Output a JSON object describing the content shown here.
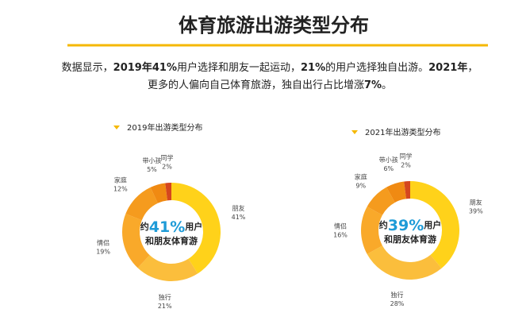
{
  "header": {
    "title": "体育旅游出游类型分布"
  },
  "summary": [
    {
      "text": "数据显示，",
      "bold": false
    },
    {
      "text": "2019年41%",
      "bold": true
    },
    {
      "text": "用户选择和朋友一起运动，",
      "bold": false
    },
    {
      "text": "21%",
      "bold": true
    },
    {
      "text": "的用户选择独自出游。",
      "bold": false
    },
    {
      "text": "2021年",
      "bold": true
    },
    {
      "text": "，",
      "bold": false
    },
    {
      "text": "更多的人偏向自己体育旅游，独自出行占比增涨",
      "bold": false,
      "newline": true
    },
    {
      "text": "7%",
      "bold": true
    },
    {
      "text": "。",
      "bold": false
    }
  ],
  "chart_data": [
    {
      "type": "donut",
      "title": "2019年出游类型分布",
      "categories": [
        "朋友",
        "独行",
        "情侣",
        "家庭",
        "带小孩",
        "同学"
      ],
      "values": [
        41,
        21,
        19,
        12,
        5,
        2
      ],
      "value_labels": [
        "41%",
        "21%",
        "19%",
        "12%",
        "5%",
        "2%"
      ],
      "colors": [
        "#FFD21A",
        "#FBBE3C",
        "#F9A92A",
        "#F59B1E",
        "#F08A12",
        "#D5461E"
      ],
      "center_text": {
        "prefix": "约",
        "highlight": "41%",
        "suffix": "用户",
        "line2": "和朋友体育游"
      }
    },
    {
      "type": "donut",
      "title": "2021年出游类型分布",
      "categories": [
        "朋友",
        "独行",
        "情侣",
        "家庭",
        "带小孩",
        "同学"
      ],
      "values": [
        39,
        28,
        16,
        9,
        6,
        2
      ],
      "value_labels": [
        "39%",
        "28%",
        "16%",
        "9%",
        "6%",
        "2%"
      ],
      "colors": [
        "#FFD21A",
        "#FBBE3C",
        "#F9A92A",
        "#F59B1E",
        "#F08A12",
        "#D5461E"
      ],
      "center_text": {
        "prefix": "约",
        "highlight": "39%",
        "suffix": "用户",
        "line2": "和朋友体育游"
      }
    }
  ]
}
